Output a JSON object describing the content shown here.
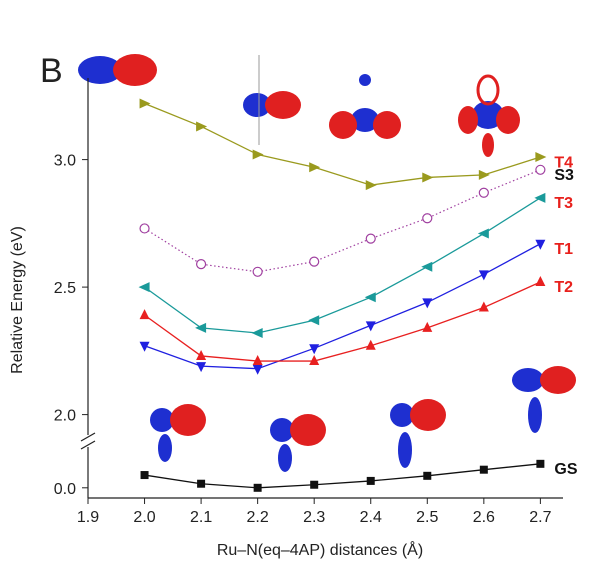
{
  "chart_data": {
    "type": "line",
    "panel_label": "B",
    "xlabel": "Ru–N(eq–4AP) distances (Å)",
    "ylabel": "Relative Energy (eV)",
    "x": [
      2.0,
      2.1,
      2.2,
      2.3,
      2.4,
      2.5,
      2.6,
      2.7
    ],
    "xlim": [
      1.9,
      2.74
    ],
    "xticks": [
      1.9,
      {
        "value": 2.0,
        "label": "2.0"
      },
      2.1,
      2.2,
      2.3,
      2.4,
      2.5,
      2.6,
      2.7
    ],
    "ylim": [
      -0.04,
      3.32
    ],
    "ybreak": [
      0.16,
      1.92
    ],
    "yticks": [
      {
        "value": 0,
        "label": "0.0"
      },
      {
        "value": 2.0,
        "label": "2.0"
      },
      2.5,
      {
        "value": 3.0,
        "label": "3.0"
      }
    ],
    "series": [
      {
        "name": "T4",
        "color": "#9a9a1e",
        "label_color": "#e8201c",
        "marker": "triangle-right",
        "line": "solid",
        "values": [
          3.22,
          3.13,
          3.02,
          2.97,
          2.9,
          2.93,
          2.94,
          3.01
        ]
      },
      {
        "name": "S3",
        "color": "#a040a0",
        "label_color": "#111111",
        "marker": "open-circle",
        "line": "dotted",
        "values": [
          2.73,
          2.59,
          2.56,
          2.6,
          2.69,
          2.77,
          2.87,
          2.96
        ]
      },
      {
        "name": "T3",
        "color": "#1a9a9a",
        "label_color": "#e8201c",
        "marker": "triangle-left",
        "line": "solid",
        "values": [
          2.5,
          2.34,
          2.32,
          2.37,
          2.46,
          2.58,
          2.71,
          2.85
        ]
      },
      {
        "name": "T1",
        "color": "#2020e0",
        "label_color": "#e8201c",
        "marker": "triangle-down",
        "line": "solid",
        "values": [
          2.27,
          2.19,
          2.18,
          2.26,
          2.35,
          2.44,
          2.55,
          2.67
        ]
      },
      {
        "name": "T2",
        "color": "#e82020",
        "label_color": "#e8201c",
        "marker": "triangle-up",
        "line": "solid",
        "values": [
          2.39,
          2.23,
          2.21,
          2.21,
          2.27,
          2.34,
          2.42,
          2.52
        ]
      },
      {
        "name": "GS",
        "color": "#111111",
        "label_color": "#111111",
        "marker": "square",
        "line": "solid",
        "values": [
          0.05,
          0.016,
          0.0,
          0.012,
          0.027,
          0.047,
          0.071,
          0.094
        ]
      }
    ]
  }
}
